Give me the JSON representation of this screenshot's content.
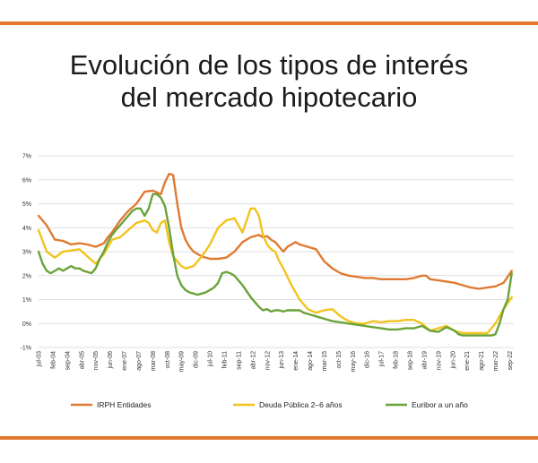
{
  "title": {
    "line1": "Evolución de los tipos de interés",
    "line2": "del mercado hipotecario"
  },
  "colors": {
    "rule": "#e2782f",
    "irph": "#e07a32",
    "deuda": "#f2c31d",
    "euribor": "#6aa33a",
    "grid": "#d4d4d4"
  },
  "chart_data": {
    "type": "line",
    "title": "Evolución de los tipos de interés del mercado hipotecario",
    "xlabel": "",
    "ylabel": "",
    "ylim": [
      -1,
      7
    ],
    "yticks": [
      7,
      6,
      5,
      4,
      3,
      2,
      1,
      0,
      -1
    ],
    "ytick_labels": [
      "7%",
      "6%",
      "5%",
      "4%",
      "3%",
      "2%",
      "1%",
      "0%",
      "-1%"
    ],
    "xlim": [
      0,
      233
    ],
    "x_tick_positions": [
      0,
      7,
      14,
      21,
      28,
      35,
      42,
      49,
      56,
      63,
      70,
      77,
      84,
      91,
      98,
      105,
      112,
      119,
      126,
      133,
      140,
      147,
      154,
      161,
      168,
      175,
      182,
      189,
      196,
      203,
      210,
      217,
      224,
      231
    ],
    "categories": [
      "jul-03",
      "feb-04",
      "sep-04",
      "abr-05",
      "nov-05",
      "jun-06",
      "ene-07",
      "ago-07",
      "mar-08",
      "oct-08",
      "may-09",
      "dic-09",
      "jul-10",
      "feb-11",
      "sep-11",
      "abr-12",
      "nov-12",
      "jun-13",
      "ene-14",
      "ago-14",
      "mar-15",
      "oct-15",
      "may-16",
      "dic-16",
      "jul-17",
      "feb-18",
      "sep-18",
      "abr-19",
      "nov-19",
      "jun-20",
      "ene-21",
      "ago-21",
      "mar-22",
      "sep-22"
    ],
    "legend_position": "bottom",
    "series": [
      {
        "name": "IRPH Entidades",
        "x": [
          0,
          4,
          8,
          12,
          16,
          20,
          24,
          28,
          32,
          34,
          36,
          40,
          44,
          48,
          52,
          56,
          60,
          62,
          64,
          66,
          68,
          70,
          72,
          74,
          76,
          80,
          84,
          88,
          92,
          96,
          100,
          104,
          108,
          110,
          112,
          114,
          116,
          118,
          120,
          122,
          124,
          126,
          128,
          132,
          136,
          140,
          144,
          148,
          152,
          156,
          160,
          164,
          168,
          172,
          176,
          180,
          184,
          188,
          190,
          192,
          196,
          200,
          204,
          208,
          212,
          216,
          220,
          224,
          228,
          232
        ],
        "values": [
          4.5,
          4.1,
          3.5,
          3.45,
          3.3,
          3.35,
          3.3,
          3.2,
          3.35,
          3.6,
          3.8,
          4.3,
          4.7,
          5.0,
          5.5,
          5.55,
          5.4,
          5.9,
          6.25,
          6.2,
          5.0,
          4.0,
          3.5,
          3.2,
          3.0,
          2.8,
          2.7,
          2.7,
          2.75,
          3.0,
          3.4,
          3.6,
          3.7,
          3.6,
          3.65,
          3.5,
          3.4,
          3.2,
          3.0,
          3.2,
          3.3,
          3.4,
          3.3,
          3.2,
          3.1,
          2.6,
          2.3,
          2.1,
          2.0,
          1.95,
          1.9,
          1.9,
          1.85,
          1.85,
          1.85,
          1.85,
          1.9,
          2.0,
          2.0,
          1.85,
          1.8,
          1.75,
          1.7,
          1.6,
          1.5,
          1.45,
          1.5,
          1.55,
          1.7,
          2.2
        ]
      },
      {
        "name": "Deuda Pública 2–6 años",
        "x": [
          0,
          4,
          8,
          12,
          16,
          20,
          24,
          28,
          32,
          36,
          40,
          44,
          48,
          52,
          54,
          56,
          58,
          60,
          62,
          64,
          66,
          68,
          70,
          72,
          76,
          80,
          84,
          88,
          92,
          96,
          100,
          104,
          106,
          108,
          110,
          112,
          114,
          116,
          118,
          120,
          124,
          128,
          132,
          136,
          140,
          144,
          148,
          152,
          156,
          160,
          164,
          168,
          172,
          176,
          180,
          184,
          188,
          192,
          196,
          200,
          204,
          208,
          212,
          216,
          220,
          224,
          228,
          232
        ],
        "values": [
          3.9,
          3.0,
          2.75,
          3.0,
          3.05,
          3.1,
          2.8,
          2.5,
          2.9,
          3.5,
          3.6,
          3.9,
          4.2,
          4.3,
          4.2,
          3.9,
          3.8,
          4.2,
          4.3,
          3.4,
          2.8,
          2.6,
          2.4,
          2.3,
          2.4,
          2.8,
          3.3,
          4.0,
          4.3,
          4.4,
          3.8,
          4.8,
          4.8,
          4.5,
          3.7,
          3.3,
          3.1,
          3.0,
          2.6,
          2.3,
          1.6,
          1.0,
          0.6,
          0.45,
          0.55,
          0.6,
          0.3,
          0.1,
          0.0,
          0.0,
          0.1,
          0.05,
          0.1,
          0.1,
          0.15,
          0.15,
          0.0,
          -0.3,
          -0.2,
          -0.1,
          -0.3,
          -0.4,
          -0.4,
          -0.4,
          -0.4,
          0.0,
          0.6,
          1.1
        ]
      },
      {
        "name": "Euribor a un año",
        "x": [
          0,
          2,
          4,
          6,
          8,
          10,
          12,
          14,
          16,
          18,
          20,
          22,
          24,
          26,
          28,
          30,
          32,
          34,
          36,
          38,
          40,
          42,
          44,
          46,
          48,
          50,
          52,
          54,
          56,
          58,
          60,
          62,
          64,
          66,
          68,
          70,
          72,
          74,
          76,
          78,
          80,
          82,
          84,
          86,
          88,
          90,
          92,
          94,
          96,
          98,
          100,
          102,
          104,
          106,
          108,
          110,
          112,
          114,
          116,
          118,
          120,
          122,
          124,
          126,
          128,
          130,
          132,
          136,
          140,
          144,
          148,
          152,
          156,
          160,
          164,
          168,
          172,
          176,
          180,
          184,
          188,
          192,
          196,
          200,
          204,
          206,
          208,
          210,
          212,
          214,
          216,
          218,
          220,
          222,
          224,
          226,
          228,
          230,
          232
        ],
        "values": [
          3.0,
          2.5,
          2.2,
          2.1,
          2.2,
          2.3,
          2.2,
          2.3,
          2.4,
          2.3,
          2.3,
          2.2,
          2.15,
          2.1,
          2.3,
          2.7,
          3.0,
          3.4,
          3.7,
          3.9,
          4.1,
          4.3,
          4.5,
          4.7,
          4.8,
          4.8,
          4.5,
          4.8,
          5.4,
          5.4,
          5.25,
          4.9,
          4.0,
          2.9,
          2.0,
          1.6,
          1.4,
          1.3,
          1.25,
          1.2,
          1.25,
          1.3,
          1.4,
          1.5,
          1.7,
          2.1,
          2.15,
          2.1,
          2.0,
          1.8,
          1.6,
          1.35,
          1.1,
          0.9,
          0.7,
          0.55,
          0.6,
          0.5,
          0.55,
          0.55,
          0.5,
          0.55,
          0.55,
          0.55,
          0.55,
          0.45,
          0.4,
          0.3,
          0.2,
          0.1,
          0.05,
          0.0,
          -0.05,
          -0.1,
          -0.15,
          -0.2,
          -0.25,
          -0.25,
          -0.2,
          -0.2,
          -0.1,
          -0.3,
          -0.35,
          -0.15,
          -0.3,
          -0.45,
          -0.5,
          -0.5,
          -0.5,
          -0.5,
          -0.5,
          -0.5,
          -0.5,
          -0.5,
          -0.45,
          0.0,
          0.6,
          1.0,
          2.1
        ]
      }
    ]
  }
}
